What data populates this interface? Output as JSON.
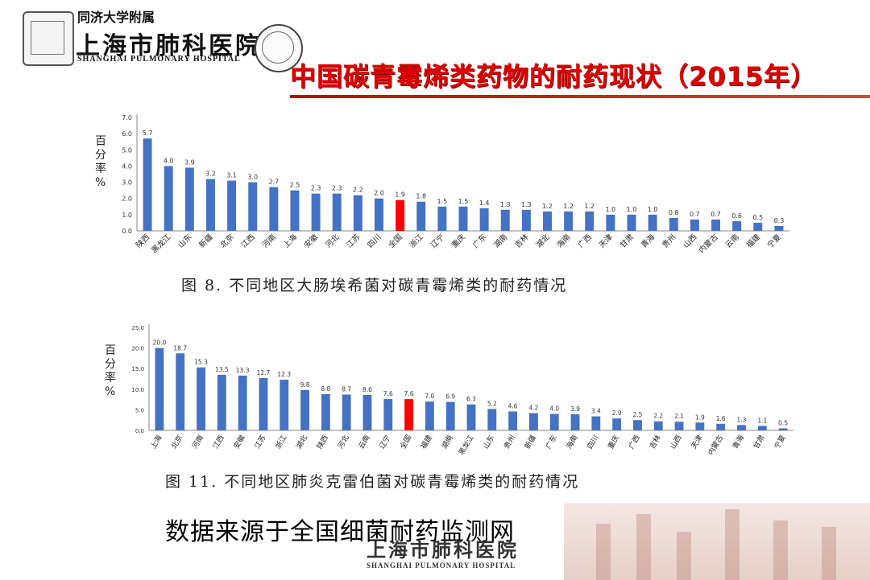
{
  "header": {
    "institution_top": "同济大学附属",
    "institution_cn": "上海市肺科医院",
    "institution_en": "SHANGHAI PULMONARY HOSPITAL",
    "title": "中国碳青霉烯类药物的耐药现状（2015年）",
    "title_color": "#e00000"
  },
  "chart_data": [
    {
      "type": "bar",
      "caption": "图 8. 不同地区大肠埃希菌对碳青霉烯类的耐药情况",
      "ylabel": "百分率%",
      "ylim": [
        0,
        7
      ],
      "yticks": [
        "0.0",
        "1.0",
        "2.0",
        "3.0",
        "4.0",
        "5.0",
        "6.0",
        "7.0"
      ],
      "categories": [
        "陕西",
        "黑龙江",
        "山东",
        "新疆",
        "北京",
        "江西",
        "河南",
        "上海",
        "安徽",
        "河北",
        "江苏",
        "四川",
        "全国",
        "浙江",
        "辽宁",
        "重庆",
        "广东",
        "湖南",
        "吉林",
        "湖北",
        "海南",
        "广西",
        "天津",
        "甘肃",
        "青海",
        "贵州",
        "山西",
        "内蒙古",
        "云南",
        "福建",
        "宁夏"
      ],
      "values": [
        5.7,
        4.0,
        3.9,
        3.2,
        3.1,
        3.0,
        2.7,
        2.5,
        2.3,
        2.3,
        2.2,
        2.0,
        1.9,
        1.8,
        1.5,
        1.5,
        1.4,
        1.3,
        1.3,
        1.2,
        1.2,
        1.2,
        1.0,
        1.0,
        1.0,
        0.8,
        0.7,
        0.7,
        0.6,
        0.5,
        0.3
      ],
      "value_labels": [
        "5.7",
        "4.0",
        "3.9",
        "3.2",
        "3.1",
        "3.0",
        "2.7",
        "2.5",
        "2.3",
        "2.3",
        "2.2",
        "2.0",
        "1.9",
        "1.8",
        "1.5",
        "1.5",
        "1.4",
        "1.3",
        "1.3",
        "1.2",
        "1.2",
        "1.2",
        "1.0",
        "1.0",
        "1.0",
        "0.8",
        "0.7",
        "0.7",
        "0.6",
        "0.5",
        "0.3"
      ],
      "highlight_index": 12,
      "bar_color": "#4472c4",
      "highlight_color": "#ff0000"
    },
    {
      "type": "bar",
      "caption": "图 11. 不同地区肺炎克雷伯菌对碳青霉烯类的耐药情况",
      "ylabel": "百分率%",
      "ylim": [
        0,
        25
      ],
      "yticks": [
        "0.0",
        "5.0",
        "10.0",
        "15.0",
        "20.0",
        "25.0"
      ],
      "categories": [
        "上海",
        "北京",
        "河南",
        "江西",
        "安徽",
        "江苏",
        "浙江",
        "湖北",
        "陕西",
        "河北",
        "云南",
        "辽宁",
        "全国",
        "福建",
        "湖南",
        "黑龙江",
        "山东",
        "贵州",
        "新疆",
        "广东",
        "海南",
        "四川",
        "重庆",
        "广西",
        "吉林",
        "山西",
        "天津",
        "内蒙古",
        "青海",
        "甘肃",
        "宁夏"
      ],
      "values": [
        20.0,
        18.7,
        15.3,
        13.5,
        13.3,
        12.7,
        12.3,
        9.8,
        8.8,
        8.7,
        8.6,
        7.6,
        7.6,
        7.0,
        6.9,
        6.3,
        5.2,
        4.6,
        4.2,
        4.0,
        3.9,
        3.4,
        2.9,
        2.5,
        2.2,
        2.1,
        1.9,
        1.6,
        1.3,
        1.1,
        0.5
      ],
      "value_labels": [
        "20.0",
        "18.7",
        "15.3",
        "13.5",
        "13.3",
        "12.7",
        "12.3",
        "9.8",
        "8.8",
        "8.7",
        "8.6",
        "7.6",
        "7.6",
        "7.0",
        "6.9",
        "6.3",
        "5.2",
        "4.6",
        "4.2",
        "4.0",
        "3.9",
        "3.4",
        "2.9",
        "2.5",
        "2.2",
        "2.1",
        "1.9",
        "1.6",
        "1.3",
        "1.1",
        "0.5"
      ],
      "highlight_index": 12,
      "bar_color": "#4472c4",
      "highlight_color": "#ff0000"
    }
  ],
  "source_note": "数据来源于全国细菌耐药监测网",
  "footer": {
    "institution_cn": "上海市肺科医院",
    "institution_en": "SHANGHAI PULMONARY HOSPITAL"
  }
}
